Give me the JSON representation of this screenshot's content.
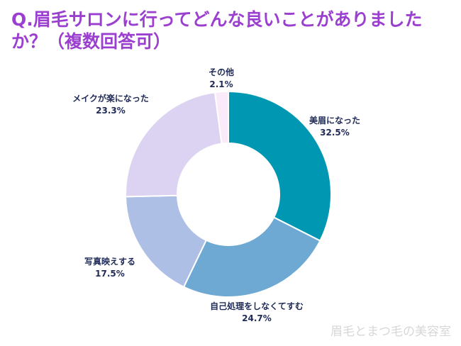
{
  "chart_data": {
    "type": "pie",
    "title": "Q.眉毛サロンに行ってどんな良いことがありましたか？（複数回答可）",
    "categories": [
      "美眉になった",
      "自己処理をしなくてすむ",
      "写真映えする",
      "メイクが楽になった",
      "その他"
    ],
    "values": [
      32.5,
      24.7,
      17.5,
      23.3,
      2.1
    ],
    "value_labels": [
      "32.5%",
      "24.7%",
      "17.5%",
      "23.3%",
      "2.1%"
    ],
    "colors": [
      "#0097b2",
      "#6ea9d4",
      "#aebfe6",
      "#dcd3f2",
      "#fbeafa"
    ],
    "donut": true
  },
  "watermark": "眉毛とまつ毛の美容室"
}
